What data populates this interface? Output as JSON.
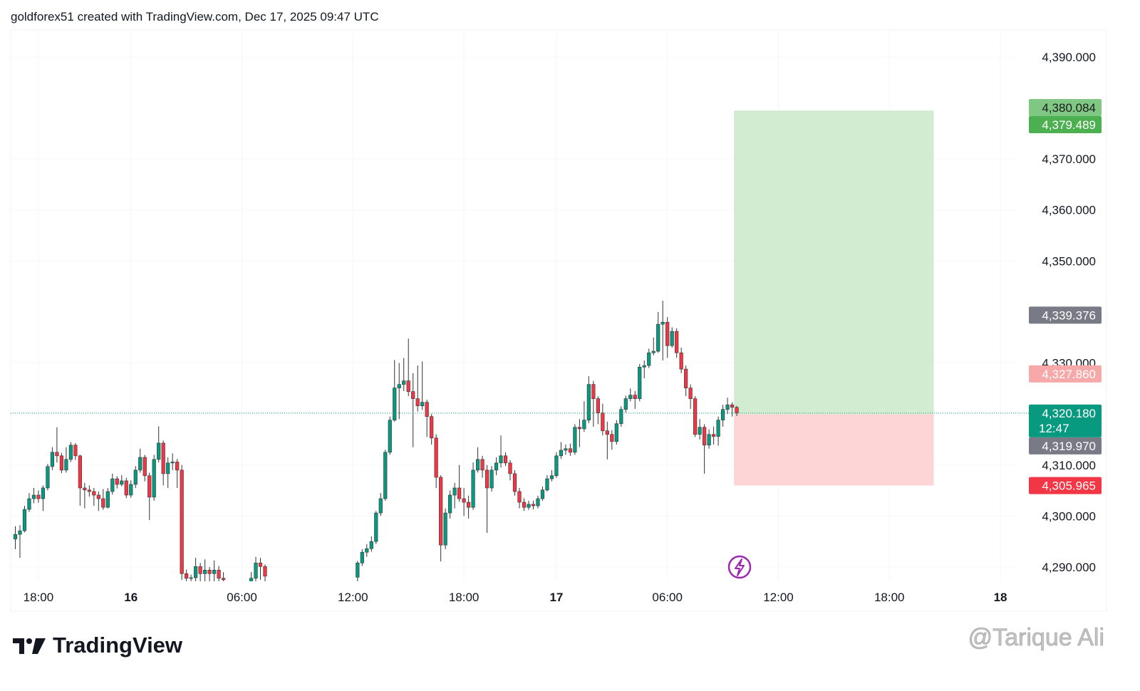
{
  "header": "goldforex51 created with TradingView.com, Dec 17, 2025 09:47 UTC",
  "footer": {
    "logo": "TradingView",
    "watermark": "@Tarique Ali"
  },
  "chart_data": {
    "type": "candlestick",
    "up_color": "#089981",
    "down_color": "#f23645",
    "grid": true,
    "xlim": [
      -6.5,
      48
    ],
    "ylim": [
      4287.2,
      4395.3
    ],
    "xticks": [
      {
        "value": -5,
        "label": "18:00"
      },
      {
        "value": 0,
        "label": "16"
      },
      {
        "value": 6,
        "label": "06:00"
      },
      {
        "value": 12,
        "label": "12:00"
      },
      {
        "value": 18,
        "label": "18:00"
      },
      {
        "value": 23,
        "label": "17"
      },
      {
        "value": 29,
        "label": "06:00"
      },
      {
        "value": 35,
        "label": "12:00"
      },
      {
        "value": 41,
        "label": "18:00"
      },
      {
        "value": 47,
        "label": "18"
      }
    ],
    "yticks": [
      {
        "value": 4290,
        "label": "4,290.000"
      },
      {
        "value": 4300,
        "label": "4,300.000"
      },
      {
        "value": 4310,
        "label": "4,310.000"
      },
      {
        "value": 4330,
        "label": "4,330.000"
      },
      {
        "value": 4350,
        "label": "4,350.000"
      },
      {
        "value": 4360,
        "label": "4,360.000"
      },
      {
        "value": 4370,
        "label": "4,370.000"
      },
      {
        "value": 4390,
        "label": "4,390.000"
      }
    ],
    "x": [
      -6.25,
      -6,
      -5.75,
      -5.5,
      -5.25,
      -5,
      -4.75,
      -4.5,
      -4.25,
      -4,
      -3.75,
      -3.5,
      -3.25,
      -3,
      -2.75,
      -2.5,
      -2.25,
      -2,
      -1.75,
      -1.5,
      -1.25,
      -1,
      -0.75,
      -0.5,
      -0.25,
      0,
      0.25,
      0.5,
      0.75,
      1,
      1.25,
      1.5,
      1.75,
      2,
      2.25,
      2.5,
      2.75,
      3,
      3.25,
      3.5,
      3.75,
      4,
      4.25,
      4.5,
      4.75,
      5,
      6.5,
      6.75,
      7,
      7.25,
      12.25,
      12.5,
      12.75,
      13,
      13.25,
      13.5,
      13.75,
      14,
      14.25,
      14.5,
      14.75,
      15,
      15.25,
      15.5,
      15.75,
      16,
      16.25,
      16.5,
      16.75,
      17,
      17.25,
      17.5,
      17.75,
      18,
      18.25,
      18.5,
      18.75,
      19,
      19.25,
      19.5,
      19.75,
      20,
      20.25,
      20.5,
      20.75,
      21,
      21.25,
      21.5,
      21.75,
      22,
      22.25,
      22.5,
      22.75,
      23,
      23.25,
      23.5,
      23.75,
      24,
      24.25,
      24.5,
      24.75,
      25,
      25.25,
      25.5,
      25.75,
      26,
      26.25,
      26.5,
      26.75,
      27,
      27.25,
      27.5,
      27.75,
      28,
      28.25,
      28.5,
      28.75,
      29,
      29.25,
      29.5,
      29.75,
      30,
      30.25,
      30.5,
      30.75,
      31,
      31.25,
      31.5,
      31.75,
      32,
      32.25,
      32.5,
      32.75
    ],
    "open": [
      4295.5,
      4296.4,
      4297.1,
      4301.3,
      4303.4,
      4304.1,
      4303.4,
      4305.5,
      4309.7,
      4312.5,
      4311.8,
      4309.0,
      4311.1,
      4313.9,
      4311.8,
      4305.5,
      4305.1,
      4304.8,
      4304.1,
      4303.4,
      4301.7,
      4304.8,
      4307.3,
      4306.2,
      4306.9,
      4304.1,
      4306.2,
      4309.0,
      4311.5,
      4307.9,
      4303.7,
      4311.1,
      4314.3,
      4308.3,
      4310.4,
      4310.6,
      4309.0,
      4288.7,
      4287.8,
      4287.9,
      4290.1,
      4288.7,
      4289.4,
      4288.7,
      4289.4,
      4287.8,
      4286.5,
      4287.8,
      4290.8,
      4290.1,
      4288.0,
      4290.8,
      4292.9,
      4293.6,
      4295.0,
      4300.6,
      4303.4,
      4312.5,
      4318.8,
      4325.1,
      4325.8,
      4326.5,
      4324.4,
      4323.0,
      4321.6,
      4322.3,
      4319.5,
      4315.3,
      4307.6,
      4294.3,
      4300.6,
      4304.1,
      4305.5,
      4303.4,
      4302.7,
      4301.7,
      4309.0,
      4311.1,
      4309.0,
      4305.5,
      4309.0,
      4310.4,
      4311.8,
      4310.4,
      4308.3,
      4304.8,
      4302.7,
      4301.7,
      4302.3,
      4302.0,
      4303.4,
      4305.1,
      4307.3,
      4307.9,
      4311.8,
      4312.9,
      4313.2,
      4312.5,
      4317.4,
      4317.1,
      4318.8,
      4325.8,
      4323.0,
      4320.2,
      4316.7,
      4316.0,
      4314.6,
      4318.1,
      4320.9,
      4323.0,
      4323.7,
      4323.0,
      4329.2,
      4329.5,
      4332.0,
      4332.3,
      4337.6,
      4338.0,
      4333.4,
      4336.2,
      4332.0,
      4328.8,
      4325.1,
      4323.0,
      4316.0,
      4317.4,
      4313.9,
      4316.0,
      4315.6,
      4318.8,
      4320.9,
      4321.8,
      4321.3
    ],
    "high": [
      4298.0,
      4298.2,
      4302.0,
      4304.5,
      4305.5,
      4305.0,
      4306.0,
      4310.2,
      4313.5,
      4317.4,
      4312.4,
      4313.5,
      4314.5,
      4314.3,
      4312.0,
      4306.5,
      4306.0,
      4305.5,
      4304.8,
      4305.3,
      4305.5,
      4308.3,
      4307.8,
      4308.0,
      4307.5,
      4307.0,
      4309.8,
      4313.2,
      4312.0,
      4308.5,
      4312.0,
      4317.6,
      4314.8,
      4311.5,
      4312.3,
      4311.2,
      4310.0,
      4289.5,
      4288.5,
      4291.8,
      4290.8,
      4291.5,
      4290.0,
      4291.3,
      4290.2,
      4289.0,
      4289.0,
      4292.0,
      4291.8,
      4290.5,
      4291.2,
      4293.5,
      4294.5,
      4296.0,
      4301.0,
      4304.5,
      4313.0,
      4319.5,
      4330.6,
      4330.0,
      4331.0,
      4334.8,
      4328.0,
      4329.5,
      4330.3,
      4322.8,
      4320.0,
      4316.0,
      4308.0,
      4301.5,
      4305.0,
      4306.5,
      4310.0,
      4305.5,
      4304.0,
      4310.5,
      4313.5,
      4311.8,
      4310.0,
      4309.8,
      4311.5,
      4315.8,
      4312.5,
      4311.0,
      4309.0,
      4305.5,
      4303.5,
      4303.0,
      4303.0,
      4304.0,
      4305.8,
      4308.0,
      4309.0,
      4312.5,
      4314.5,
      4314.0,
      4314.2,
      4318.0,
      4319.0,
      4322.5,
      4327.4,
      4326.5,
      4323.5,
      4322.0,
      4318.5,
      4316.8,
      4318.8,
      4321.5,
      4323.6,
      4325.0,
      4324.5,
      4329.8,
      4330.5,
      4332.8,
      4335.0,
      4340.0,
      4342.2,
      4339.0,
      4337.0,
      4336.8,
      4333.0,
      4329.5,
      4325.8,
      4323.5,
      4319.0,
      4318.0,
      4317.0,
      4317.5,
      4319.5,
      4321.8,
      4323.2,
      4322.3,
      4321.6
    ],
    "low": [
      4293.5,
      4291.8,
      4296.8,
      4300.8,
      4302.5,
      4302.6,
      4301.0,
      4305.0,
      4309.0,
      4310.5,
      4308.4,
      4308.5,
      4310.6,
      4311.0,
      4302.0,
      4301.5,
      4303.8,
      4302.0,
      4301.0,
      4301.2,
      4301.5,
      4304.2,
      4305.4,
      4305.8,
      4303.5,
      4303.6,
      4305.5,
      4308.5,
      4306.8,
      4299.2,
      4303.0,
      4310.5,
      4306.0,
      4305.5,
      4309.0,
      4305.5,
      4287.5,
      4286.0,
      4286.0,
      4286.5,
      4286.5,
      4286.8,
      4286.5,
      4287.0,
      4286.0,
      4285.5,
      4285.0,
      4287.0,
      4287.5,
      4286.0,
      4287.0,
      4290.2,
      4292.0,
      4293.0,
      4294.5,
      4300.0,
      4303.0,
      4312.0,
      4318.5,
      4319.0,
      4324.5,
      4323.5,
      4313.5,
      4320.5,
      4320.8,
      4315.5,
      4314.0,
      4305.5,
      4291.1,
      4293.5,
      4299.5,
      4301.5,
      4302.8,
      4300.0,
      4299.5,
      4301.2,
      4308.5,
      4307.5,
      4296.7,
      4304.8,
      4308.0,
      4309.5,
      4309.8,
      4307.0,
      4304.0,
      4301.5,
      4301.0,
      4301.2,
      4301.3,
      4301.5,
      4303.0,
      4304.8,
      4306.8,
      4307.5,
      4311.2,
      4312.0,
      4311.8,
      4312.0,
      4313.5,
      4316.5,
      4318.2,
      4317.5,
      4318.0,
      4315.8,
      4311.1,
      4313.0,
      4314.0,
      4317.5,
      4320.3,
      4322.5,
      4321.0,
      4322.5,
      4327.0,
      4329.0,
      4331.5,
      4332.0,
      4330.5,
      4331.0,
      4333.0,
      4331.0,
      4328.0,
      4323.5,
      4321.0,
      4315.5,
      4315.0,
      4308.3,
      4313.2,
      4314.0,
      4313.8,
      4317.5,
      4320.0,
      4319.5,
      4319.6
    ],
    "close": [
      4296.4,
      4297.1,
      4301.3,
      4303.4,
      4304.1,
      4303.4,
      4305.5,
      4309.7,
      4312.5,
      4311.8,
      4309.0,
      4311.1,
      4313.9,
      4311.8,
      4305.5,
      4305.1,
      4304.8,
      4304.1,
      4303.4,
      4301.7,
      4304.8,
      4307.3,
      4306.2,
      4306.9,
      4304.1,
      4306.2,
      4309.0,
      4311.5,
      4307.9,
      4303.7,
      4311.1,
      4314.3,
      4308.3,
      4310.4,
      4310.6,
      4309.0,
      4288.7,
      4287.8,
      4287.9,
      4290.1,
      4288.7,
      4289.4,
      4288.7,
      4289.4,
      4287.8,
      4287.5,
      4287.8,
      4290.8,
      4290.1,
      4288.2,
      4290.8,
      4292.9,
      4293.6,
      4295.0,
      4300.6,
      4303.4,
      4312.5,
      4318.8,
      4325.1,
      4325.8,
      4326.5,
      4324.4,
      4323.0,
      4321.6,
      4322.3,
      4319.5,
      4315.3,
      4307.6,
      4294.3,
      4300.6,
      4304.1,
      4305.5,
      4303.4,
      4302.7,
      4301.7,
      4309.0,
      4311.1,
      4309.0,
      4305.5,
      4309.0,
      4310.4,
      4311.8,
      4310.4,
      4308.3,
      4304.8,
      4302.7,
      4301.7,
      4302.3,
      4302.0,
      4303.4,
      4305.1,
      4307.3,
      4307.9,
      4311.8,
      4312.9,
      4313.2,
      4312.5,
      4317.4,
      4317.1,
      4318.8,
      4325.8,
      4323.0,
      4320.2,
      4316.7,
      4316.0,
      4314.6,
      4318.1,
      4320.9,
      4323.0,
      4323.7,
      4323.0,
      4329.2,
      4329.5,
      4332.0,
      4332.3,
      4337.6,
      4338.0,
      4333.4,
      4336.2,
      4332.0,
      4328.8,
      4325.1,
      4323.0,
      4316.0,
      4317.4,
      4313.9,
      4316.0,
      4315.6,
      4318.8,
      4320.9,
      4321.8,
      4321.3,
      4320.18
    ],
    "position": {
      "entry": 4319.97,
      "target": 4379.489,
      "stop": 4305.965,
      "x": [
        32.6,
        43.4
      ],
      "profit_color": "#d1ecd0",
      "loss_color": "#fdd5d7"
    },
    "last_price": {
      "value": 4320.18,
      "label": "4,320.180",
      "countdown": "12:47",
      "color": "#089981"
    },
    "price_labels": [
      {
        "value": 4380.084,
        "label": "4,380.084",
        "color": "#81c784",
        "text_color": "#1b1b1b"
      },
      {
        "value": 4379.489,
        "label": "4,379.489",
        "color": "#4caf50",
        "text_color": "#ffffff"
      },
      {
        "value": 4339.376,
        "label": "4,339.376",
        "color": "#787b86",
        "text_color": "#ffffff"
      },
      {
        "value": 4327.86,
        "label": "4,327.860",
        "color": "#f7a9a9",
        "text_color": "#ffffff"
      },
      {
        "value": 4319.97,
        "label": "4,319.970",
        "color": "#787b86",
        "text_color": "#ffffff"
      },
      {
        "value": 4305.965,
        "label": "4,305.965",
        "color": "#f23645",
        "text_color": "#ffffff"
      }
    ]
  }
}
